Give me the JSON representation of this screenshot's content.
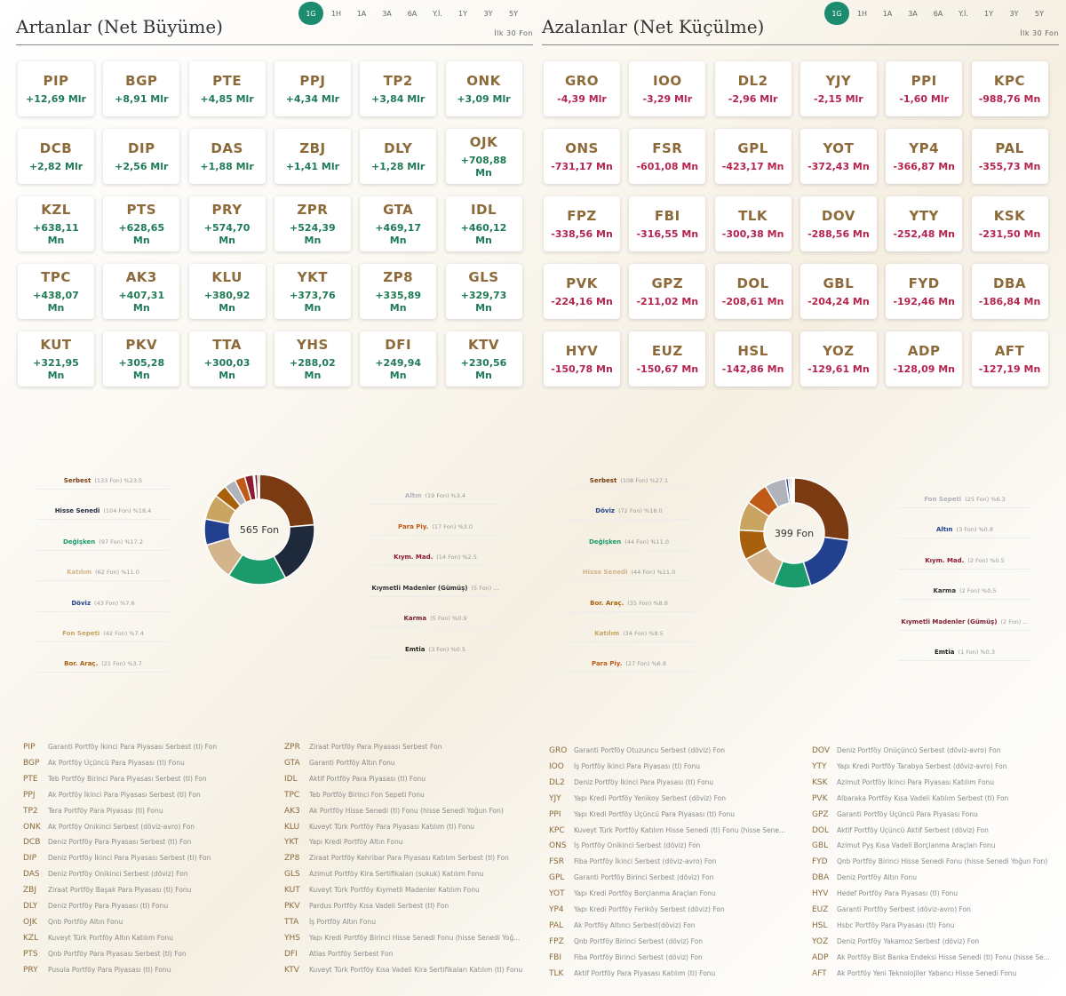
{
  "periods": [
    "1G",
    "1H",
    "1A",
    "3A",
    "6A",
    "Y.İ.",
    "1Y",
    "3Y",
    "5Y"
  ],
  "active_period": "1G",
  "left": {
    "title": "Artanlar (Net Büyüme)",
    "subtitle": "İlk 30 Fon",
    "cards": [
      {
        "code": "PIP",
        "value": "+12,69 Mlr"
      },
      {
        "code": "BGP",
        "value": "+8,91 Mlr"
      },
      {
        "code": "PTE",
        "value": "+4,85 Mlr"
      },
      {
        "code": "PPJ",
        "value": "+4,34 Mlr"
      },
      {
        "code": "TP2",
        "value": "+3,84 Mlr"
      },
      {
        "code": "ONK",
        "value": "+3,09 Mlr"
      },
      {
        "code": "DCB",
        "value": "+2,82 Mlr"
      },
      {
        "code": "DIP",
        "value": "+2,56 Mlr"
      },
      {
        "code": "DAS",
        "value": "+1,88 Mlr"
      },
      {
        "code": "ZBJ",
        "value": "+1,41 Mlr"
      },
      {
        "code": "DLY",
        "value": "+1,28 Mlr"
      },
      {
        "code": "OJK",
        "value": "+708,88 Mn"
      },
      {
        "code": "KZL",
        "value": "+638,11 Mn"
      },
      {
        "code": "PTS",
        "value": "+628,65 Mn"
      },
      {
        "code": "PRY",
        "value": "+574,70 Mn"
      },
      {
        "code": "ZPR",
        "value": "+524,39 Mn"
      },
      {
        "code": "GTA",
        "value": "+469,17 Mn"
      },
      {
        "code": "IDL",
        "value": "+460,12 Mn"
      },
      {
        "code": "TPC",
        "value": "+438,07 Mn"
      },
      {
        "code": "AK3",
        "value": "+407,31 Mn"
      },
      {
        "code": "KLU",
        "value": "+380,92 Mn"
      },
      {
        "code": "YKT",
        "value": "+373,76 Mn"
      },
      {
        "code": "ZP8",
        "value": "+335,89 Mn"
      },
      {
        "code": "GLS",
        "value": "+329,73 Mn"
      },
      {
        "code": "KUT",
        "value": "+321,95 Mn"
      },
      {
        "code": "PKV",
        "value": "+305,28 Mn"
      },
      {
        "code": "TTA",
        "value": "+300,03 Mn"
      },
      {
        "code": "YHS",
        "value": "+288,02 Mn"
      },
      {
        "code": "DFI",
        "value": "+249,94 Mn"
      },
      {
        "code": "KTV",
        "value": "+230,56 Mn"
      }
    ],
    "donut_label": "565 Fon",
    "legend_left": [
      {
        "name": "Serbest",
        "count": "(133 Fon) %23.5",
        "color": "#7a3b12"
      },
      {
        "name": "Hisse Senedi",
        "count": "(104 Fon) %18.4",
        "color": "#1e2a3c"
      },
      {
        "name": "Değişken",
        "count": "(97 Fon) %17.2",
        "color": "#1b9a6c"
      },
      {
        "name": "Katılım",
        "count": "(62 Fon) %11.0",
        "color": "#d4b48c"
      },
      {
        "name": "Döviz",
        "count": "(43 Fon) %7.6",
        "color": "#23408e"
      },
      {
        "name": "Fon Sepeti",
        "count": "(42 Fon) %7.4",
        "color": "#c9a561"
      },
      {
        "name": "Bor. Araç.",
        "count": "(21 Fon) %3.7",
        "color": "#a8600c"
      }
    ],
    "legend_right": [
      {
        "name": "Altın",
        "count": "(19 Fon) %3.4",
        "color": "#b0b3bb"
      },
      {
        "name": "Para Piy.",
        "count": "(17 Fon) %3.0",
        "color": "#c05a17"
      },
      {
        "name": "Kıym. Mad.",
        "count": "(14 Fon) %2.5",
        "color": "#8e1a32"
      },
      {
        "name": "Kıymetli Madenler (Gümüş)",
        "count": "(5 Fon) ...",
        "color": "#333333"
      },
      {
        "name": "Karma",
        "count": "(5 Fon) %0.9",
        "color": "#7a1f35"
      },
      {
        "name": "Emtia",
        "count": "(3 Fon) %0.5",
        "color": "#222222"
      }
    ],
    "funds_col1": [
      {
        "code": "PIP",
        "name": "Garanti Portföy İkinci Para Piyasası Serbest (tl) Fon"
      },
      {
        "code": "BGP",
        "name": "Ak Portföy Üçüncü Para Piyasası (tl) Fonu"
      },
      {
        "code": "PTE",
        "name": "Teb Portföy Birinci Para Piyasası Serbest (tl) Fon"
      },
      {
        "code": "PPJ",
        "name": "Ak Portföy İkinci Para Piyasası Serbest (tl) Fon"
      },
      {
        "code": "TP2",
        "name": "Tera Portföy Para Piyasası (tl) Fonu"
      },
      {
        "code": "ONK",
        "name": "Ak Portföy Onikinci Serbest (döviz-avro) Fon"
      },
      {
        "code": "DCB",
        "name": "Deniz Portföy Para Piyasası Serbest (tl) Fon"
      },
      {
        "code": "DIP",
        "name": "Deniz Portföy İkinci Para Piyasası Serbest (tl) Fon"
      },
      {
        "code": "DAS",
        "name": "Deniz Portföy Onikinci Serbest (döviz) Fon"
      },
      {
        "code": "ZBJ",
        "name": "Ziraat Portföy Başak Para Piyasası (tl) Fonu"
      },
      {
        "code": "DLY",
        "name": "Deniz Portföy Para Piyasası (tl) Fonu"
      },
      {
        "code": "OJK",
        "name": "Qnb Portföy Altın Fonu"
      },
      {
        "code": "KZL",
        "name": "Kuveyt Türk Portföy Altın Katılım Fonu"
      },
      {
        "code": "PTS",
        "name": "Qnb Portföy Para Piyasası Serbest (tl) Fon"
      },
      {
        "code": "PRY",
        "name": "Pusula Portföy Para Piyasası (tl) Fonu"
      }
    ],
    "funds_col2": [
      {
        "code": "ZPR",
        "name": "Ziraat Portföy Para Piyasası Serbest Fon"
      },
      {
        "code": "GTA",
        "name": "Garanti Portföy Altın Fonu"
      },
      {
        "code": "IDL",
        "name": "Aktif Portföy Para Piyasası (tl) Fonu"
      },
      {
        "code": "TPC",
        "name": "Teb Portföy Birinci Fon Sepeti Fonu"
      },
      {
        "code": "AK3",
        "name": "Ak Portföy Hisse Senedi (tl) Fonu (hisse Senedi Yoğun Fon)"
      },
      {
        "code": "KLU",
        "name": "Kuveyt Türk Portföy Para Piyasası Katılım (tl) Fonu"
      },
      {
        "code": "YKT",
        "name": "Yapı Kredi Portföy Altın Fonu"
      },
      {
        "code": "ZP8",
        "name": "Ziraat Portföy Kehribar Para Piyasası Katılım Serbest (tl) Fon"
      },
      {
        "code": "GLS",
        "name": "Azimut Portföy Kira Sertifikaları (sukuk) Katılım Fonu"
      },
      {
        "code": "KUT",
        "name": "Kuveyt Türk Portföy Kıymetli Madenler Katılım Fonu"
      },
      {
        "code": "PKV",
        "name": "Pardus Portföy Kısa Vadeli Serbest (tl) Fon"
      },
      {
        "code": "TTA",
        "name": "İş Portföy Altın Fonu"
      },
      {
        "code": "YHS",
        "name": "Yapı Kredi Portföy Birinci Hisse Senedi Fonu (hisse Senedi Yoğ..."
      },
      {
        "code": "DFI",
        "name": "Atlas Portföy Serbest Fon"
      },
      {
        "code": "KTV",
        "name": "Kuveyt Türk Portföy Kısa Vadeli Kira Sertifikaları Katılım (tl) Fonu"
      }
    ]
  },
  "right": {
    "title": "Azalanlar (Net Küçülme)",
    "subtitle": "İlk 30 Fon",
    "cards": [
      {
        "code": "GRO",
        "value": "-4,39 Mlr"
      },
      {
        "code": "IOO",
        "value": "-3,29 Mlr"
      },
      {
        "code": "DL2",
        "value": "-2,96 Mlr"
      },
      {
        "code": "YJY",
        "value": "-2,15 Mlr"
      },
      {
        "code": "PPI",
        "value": "-1,60 Mlr"
      },
      {
        "code": "KPC",
        "value": "-988,76 Mn"
      },
      {
        "code": "ONS",
        "value": "-731,17 Mn"
      },
      {
        "code": "FSR",
        "value": "-601,08 Mn"
      },
      {
        "code": "GPL",
        "value": "-423,17 Mn"
      },
      {
        "code": "YOT",
        "value": "-372,43 Mn"
      },
      {
        "code": "YP4",
        "value": "-366,87 Mn"
      },
      {
        "code": "PAL",
        "value": "-355,73 Mn"
      },
      {
        "code": "FPZ",
        "value": "-338,56 Mn"
      },
      {
        "code": "FBI",
        "value": "-316,55 Mn"
      },
      {
        "code": "TLK",
        "value": "-300,38 Mn"
      },
      {
        "code": "DOV",
        "value": "-288,56 Mn"
      },
      {
        "code": "YTY",
        "value": "-252,48 Mn"
      },
      {
        "code": "KSK",
        "value": "-231,50 Mn"
      },
      {
        "code": "PVK",
        "value": "-224,16 Mn"
      },
      {
        "code": "GPZ",
        "value": "-211,02 Mn"
      },
      {
        "code": "DOL",
        "value": "-208,61 Mn"
      },
      {
        "code": "GBL",
        "value": "-204,24 Mn"
      },
      {
        "code": "FYD",
        "value": "-192,46 Mn"
      },
      {
        "code": "DBA",
        "value": "-186,84 Mn"
      },
      {
        "code": "HYV",
        "value": "-150,78 Mn"
      },
      {
        "code": "EUZ",
        "value": "-150,67 Mn"
      },
      {
        "code": "HSL",
        "value": "-142,86 Mn"
      },
      {
        "code": "YOZ",
        "value": "-129,61 Mn"
      },
      {
        "code": "ADP",
        "value": "-128,09 Mn"
      },
      {
        "code": "AFT",
        "value": "-127,19 Mn"
      }
    ],
    "donut_label": "399 Fon",
    "legend_left": [
      {
        "name": "Serbest",
        "count": "(108 Fon) %27.1",
        "color": "#7a3b12"
      },
      {
        "name": "Döviz",
        "count": "(72 Fon) %18.0",
        "color": "#23408e"
      },
      {
        "name": "Değişken",
        "count": "(44 Fon) %11.0",
        "color": "#1b9a6c"
      },
      {
        "name": "Hisse Senedi",
        "count": "(44 Fon) %11.0",
        "color": "#d4b48c"
      },
      {
        "name": "Bor. Araç.",
        "count": "(35 Fon) %8.8",
        "color": "#a8600c"
      },
      {
        "name": "Katılım",
        "count": "(34 Fon) %8.5",
        "color": "#c9a561"
      },
      {
        "name": "Para Piy.",
        "count": "(27 Fon) %6.8",
        "color": "#c05a17"
      }
    ],
    "legend_right": [
      {
        "name": "Fon Sepeti",
        "count": "(25 Fon) %6.3",
        "color": "#b0b3bb"
      },
      {
        "name": "Altın",
        "count": "(3 Fon) %0.8",
        "color": "#23408e"
      },
      {
        "name": "Kıym. Mad.",
        "count": "(2 Fon) %0.5",
        "color": "#8e1a32"
      },
      {
        "name": "Karma",
        "count": "(2 Fon) %0.5",
        "color": "#333333"
      },
      {
        "name": "Kıymetli Madenler (Gümüş)",
        "count": "(2 Fon) ...",
        "color": "#7a1f35"
      },
      {
        "name": "Emtia",
        "count": "(1 Fon) %0.3",
        "color": "#222222"
      }
    ],
    "funds_col1": [
      {
        "code": "GRO",
        "name": "Garanti Portföy Otuzuncu Serbest (döviz) Fon"
      },
      {
        "code": "IOO",
        "name": "İş Portföy İkinci Para Piyasası (tl) Fonu"
      },
      {
        "code": "DL2",
        "name": "Deniz Portföy İkinci Para Piyasası (tl) Fonu"
      },
      {
        "code": "YJY",
        "name": "Yapı Kredi Portföy Yenikoy Serbest (döviz) Fon"
      },
      {
        "code": "PPI",
        "name": "Yapı Kredi Portföy Üçüncü Para Piyasası (tl) Fonu"
      },
      {
        "code": "KPC",
        "name": "Kuveyt Türk Portföy Katılım Hisse Senedi (tl) Fonu (hisse Sene..."
      },
      {
        "code": "ONS",
        "name": "İş Portföy Onikinci Serbest (döviz) Fon"
      },
      {
        "code": "FSR",
        "name": "Fiba Portföy İkinci Serbest (döviz-avro) Fon"
      },
      {
        "code": "GPL",
        "name": "Garanti Portföy Birinci Serbest (döviz) Fon"
      },
      {
        "code": "YOT",
        "name": "Yapı Kredi Portföy Borçlanma Araçları Fonu"
      },
      {
        "code": "YP4",
        "name": "Yapı Kredi Portföy Feriköy Serbest (döviz) Fon"
      },
      {
        "code": "PAL",
        "name": "Ak Portföy Altıncı Serbest(döviz) Fon"
      },
      {
        "code": "FPZ",
        "name": "Qnb Portföy Birinci Serbest (döviz) Fon"
      },
      {
        "code": "FBI",
        "name": "Fiba Portföy Birinci Serbest (döviz) Fon"
      },
      {
        "code": "TLK",
        "name": "Aktif Portföy Para Piyasası Katılım (tl) Fonu"
      }
    ],
    "funds_col2": [
      {
        "code": "DOV",
        "name": "Deniz Portföy Onüçüncü Serbest (döviz-avro) Fon"
      },
      {
        "code": "YTY",
        "name": "Yapı Kredi Portföy Tarabya Serbest (döviz-avro) Fon"
      },
      {
        "code": "KSK",
        "name": "Azimut Portföy İkinci Para Piyasası Katılım Fonu"
      },
      {
        "code": "PVK",
        "name": "Albaraka Portföy Kısa Vadeli Katılım Serbest (tl) Fon"
      },
      {
        "code": "GPZ",
        "name": "Garanti Portföy Üçüncü Para Piyasası Fonu"
      },
      {
        "code": "DOL",
        "name": "Aktif Portföy Üçüncü Aktif Serbest (döviz) Fon"
      },
      {
        "code": "GBL",
        "name": "Azimut Pyş Kısa Vadeli Borçlanma Araçları Fonu"
      },
      {
        "code": "FYD",
        "name": "Qnb Portföy Birinci Hisse Senedi Fonu (hisse Senedi Yoğun Fon)"
      },
      {
        "code": "DBA",
        "name": "Deniz Portföy Altın Fonu"
      },
      {
        "code": "HYV",
        "name": "Hedef Portföy Para Piyasası (tl) Fonu"
      },
      {
        "code": "EUZ",
        "name": "Garanti Portföy Serbest (döviz-avro) Fon"
      },
      {
        "code": "HSL",
        "name": "Hsbc Portföy Para Piyasası (tl) Fonu"
      },
      {
        "code": "YOZ",
        "name": "Deniz Portföy Yakamoz Serbest (döviz) Fon"
      },
      {
        "code": "ADP",
        "name": "Ak Portföy Bist Banka Endeksi Hisse Senedi (tl) Fonu (hisse Se..."
      },
      {
        "code": "AFT",
        "name": "Ak Portföy Yeni Teknolojiler Yabancı Hisse Senedi Fonu"
      }
    ]
  }
}
